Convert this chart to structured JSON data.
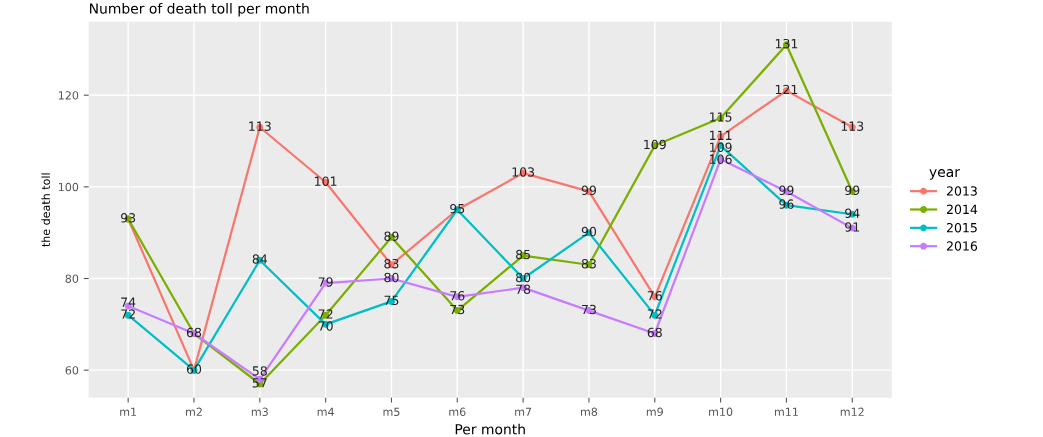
{
  "chart_data": {
    "type": "line",
    "title": "Number of death toll per month",
    "xlabel": "Per month",
    "ylabel": "the death toll",
    "legend_title": "year",
    "categories": [
      "m1",
      "m2",
      "m3",
      "m4",
      "m5",
      "m6",
      "m7",
      "m8",
      "m9",
      "m10",
      "m11",
      "m12"
    ],
    "series": [
      {
        "name": "2013",
        "color": "#f8766d",
        "values": [
          93,
          60,
          113,
          101,
          83,
          95,
          103,
          99,
          76,
          111,
          121,
          113
        ],
        "value_labels": [
          "93",
          "60",
          "113",
          "101",
          "83",
          "95",
          "103",
          "99",
          "76",
          "111",
          "121",
          "113"
        ]
      },
      {
        "name": "2014",
        "color": "#7cae00",
        "values": [
          93,
          68,
          57,
          72,
          89,
          73,
          85,
          83,
          109,
          115,
          131,
          99
        ],
        "value_labels": [
          null,
          "68",
          "57",
          "72",
          "89",
          "73",
          "85",
          "83",
          "109",
          "115",
          "131",
          "99"
        ]
      },
      {
        "name": "2015",
        "color": "#00bfc4",
        "values": [
          72,
          60,
          84,
          70,
          75,
          95,
          80,
          90,
          72,
          109,
          96,
          94
        ],
        "value_labels": [
          "72",
          null,
          "84",
          "70",
          "75",
          null,
          "80",
          "90",
          "72",
          "109",
          "96",
          "94"
        ]
      },
      {
        "name": "2016",
        "color": "#c77cff",
        "values": [
          74,
          68,
          58,
          79,
          80,
          76,
          78,
          73,
          68,
          106,
          99,
          91
        ],
        "value_labels": [
          "74",
          null,
          "58",
          "79",
          "80",
          "76",
          "78",
          "73",
          "68",
          "106",
          "99",
          "91"
        ]
      }
    ],
    "ylim": [
      54,
      136
    ],
    "yticks": [
      60,
      80,
      100,
      120
    ],
    "grid": true,
    "legend": "right",
    "marker": "circle",
    "line_style": "solid",
    "data_labels": false
  }
}
